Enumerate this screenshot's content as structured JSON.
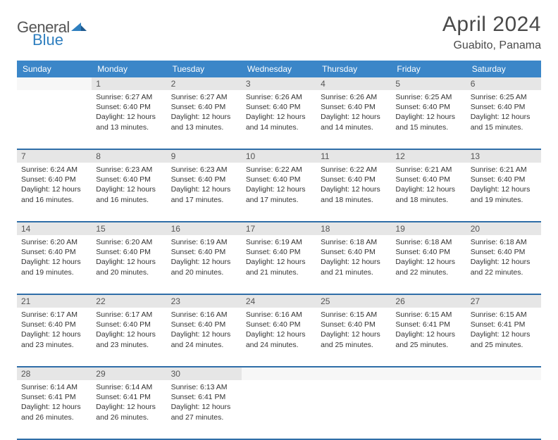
{
  "brand": {
    "name1": "General",
    "name2": "Blue"
  },
  "title": "April 2024",
  "location": "Guabito, Panama",
  "colors": {
    "header_bg": "#3b86c8",
    "header_text": "#ffffff",
    "daynum_bg": "#e6e6e6",
    "rule": "#2f6ea8",
    "logo_blue": "#2f7fbf",
    "text": "#333333"
  },
  "day_headers": [
    "Sunday",
    "Monday",
    "Tuesday",
    "Wednesday",
    "Thursday",
    "Friday",
    "Saturday"
  ],
  "weeks": [
    {
      "nums": [
        "",
        "1",
        "2",
        "3",
        "4",
        "5",
        "6"
      ],
      "cells": [
        null,
        {
          "sunrise": "Sunrise: 6:27 AM",
          "sunset": "Sunset: 6:40 PM",
          "day1": "Daylight: 12 hours",
          "day2": "and 13 minutes."
        },
        {
          "sunrise": "Sunrise: 6:27 AM",
          "sunset": "Sunset: 6:40 PM",
          "day1": "Daylight: 12 hours",
          "day2": "and 13 minutes."
        },
        {
          "sunrise": "Sunrise: 6:26 AM",
          "sunset": "Sunset: 6:40 PM",
          "day1": "Daylight: 12 hours",
          "day2": "and 14 minutes."
        },
        {
          "sunrise": "Sunrise: 6:26 AM",
          "sunset": "Sunset: 6:40 PM",
          "day1": "Daylight: 12 hours",
          "day2": "and 14 minutes."
        },
        {
          "sunrise": "Sunrise: 6:25 AM",
          "sunset": "Sunset: 6:40 PM",
          "day1": "Daylight: 12 hours",
          "day2": "and 15 minutes."
        },
        {
          "sunrise": "Sunrise: 6:25 AM",
          "sunset": "Sunset: 6:40 PM",
          "day1": "Daylight: 12 hours",
          "day2": "and 15 minutes."
        }
      ]
    },
    {
      "nums": [
        "7",
        "8",
        "9",
        "10",
        "11",
        "12",
        "13"
      ],
      "cells": [
        {
          "sunrise": "Sunrise: 6:24 AM",
          "sunset": "Sunset: 6:40 PM",
          "day1": "Daylight: 12 hours",
          "day2": "and 16 minutes."
        },
        {
          "sunrise": "Sunrise: 6:23 AM",
          "sunset": "Sunset: 6:40 PM",
          "day1": "Daylight: 12 hours",
          "day2": "and 16 minutes."
        },
        {
          "sunrise": "Sunrise: 6:23 AM",
          "sunset": "Sunset: 6:40 PM",
          "day1": "Daylight: 12 hours",
          "day2": "and 17 minutes."
        },
        {
          "sunrise": "Sunrise: 6:22 AM",
          "sunset": "Sunset: 6:40 PM",
          "day1": "Daylight: 12 hours",
          "day2": "and 17 minutes."
        },
        {
          "sunrise": "Sunrise: 6:22 AM",
          "sunset": "Sunset: 6:40 PM",
          "day1": "Daylight: 12 hours",
          "day2": "and 18 minutes."
        },
        {
          "sunrise": "Sunrise: 6:21 AM",
          "sunset": "Sunset: 6:40 PM",
          "day1": "Daylight: 12 hours",
          "day2": "and 18 minutes."
        },
        {
          "sunrise": "Sunrise: 6:21 AM",
          "sunset": "Sunset: 6:40 PM",
          "day1": "Daylight: 12 hours",
          "day2": "and 19 minutes."
        }
      ]
    },
    {
      "nums": [
        "14",
        "15",
        "16",
        "17",
        "18",
        "19",
        "20"
      ],
      "cells": [
        {
          "sunrise": "Sunrise: 6:20 AM",
          "sunset": "Sunset: 6:40 PM",
          "day1": "Daylight: 12 hours",
          "day2": "and 19 minutes."
        },
        {
          "sunrise": "Sunrise: 6:20 AM",
          "sunset": "Sunset: 6:40 PM",
          "day1": "Daylight: 12 hours",
          "day2": "and 20 minutes."
        },
        {
          "sunrise": "Sunrise: 6:19 AM",
          "sunset": "Sunset: 6:40 PM",
          "day1": "Daylight: 12 hours",
          "day2": "and 20 minutes."
        },
        {
          "sunrise": "Sunrise: 6:19 AM",
          "sunset": "Sunset: 6:40 PM",
          "day1": "Daylight: 12 hours",
          "day2": "and 21 minutes."
        },
        {
          "sunrise": "Sunrise: 6:18 AM",
          "sunset": "Sunset: 6:40 PM",
          "day1": "Daylight: 12 hours",
          "day2": "and 21 minutes."
        },
        {
          "sunrise": "Sunrise: 6:18 AM",
          "sunset": "Sunset: 6:40 PM",
          "day1": "Daylight: 12 hours",
          "day2": "and 22 minutes."
        },
        {
          "sunrise": "Sunrise: 6:18 AM",
          "sunset": "Sunset: 6:40 PM",
          "day1": "Daylight: 12 hours",
          "day2": "and 22 minutes."
        }
      ]
    },
    {
      "nums": [
        "21",
        "22",
        "23",
        "24",
        "25",
        "26",
        "27"
      ],
      "cells": [
        {
          "sunrise": "Sunrise: 6:17 AM",
          "sunset": "Sunset: 6:40 PM",
          "day1": "Daylight: 12 hours",
          "day2": "and 23 minutes."
        },
        {
          "sunrise": "Sunrise: 6:17 AM",
          "sunset": "Sunset: 6:40 PM",
          "day1": "Daylight: 12 hours",
          "day2": "and 23 minutes."
        },
        {
          "sunrise": "Sunrise: 6:16 AM",
          "sunset": "Sunset: 6:40 PM",
          "day1": "Daylight: 12 hours",
          "day2": "and 24 minutes."
        },
        {
          "sunrise": "Sunrise: 6:16 AM",
          "sunset": "Sunset: 6:40 PM",
          "day1": "Daylight: 12 hours",
          "day2": "and 24 minutes."
        },
        {
          "sunrise": "Sunrise: 6:15 AM",
          "sunset": "Sunset: 6:40 PM",
          "day1": "Daylight: 12 hours",
          "day2": "and 25 minutes."
        },
        {
          "sunrise": "Sunrise: 6:15 AM",
          "sunset": "Sunset: 6:41 PM",
          "day1": "Daylight: 12 hours",
          "day2": "and 25 minutes."
        },
        {
          "sunrise": "Sunrise: 6:15 AM",
          "sunset": "Sunset: 6:41 PM",
          "day1": "Daylight: 12 hours",
          "day2": "and 25 minutes."
        }
      ]
    },
    {
      "nums": [
        "28",
        "29",
        "30",
        "",
        "",
        "",
        ""
      ],
      "cells": [
        {
          "sunrise": "Sunrise: 6:14 AM",
          "sunset": "Sunset: 6:41 PM",
          "day1": "Daylight: 12 hours",
          "day2": "and 26 minutes."
        },
        {
          "sunrise": "Sunrise: 6:14 AM",
          "sunset": "Sunset: 6:41 PM",
          "day1": "Daylight: 12 hours",
          "day2": "and 26 minutes."
        },
        {
          "sunrise": "Sunrise: 6:13 AM",
          "sunset": "Sunset: 6:41 PM",
          "day1": "Daylight: 12 hours",
          "day2": "and 27 minutes."
        },
        null,
        null,
        null,
        null
      ]
    }
  ]
}
